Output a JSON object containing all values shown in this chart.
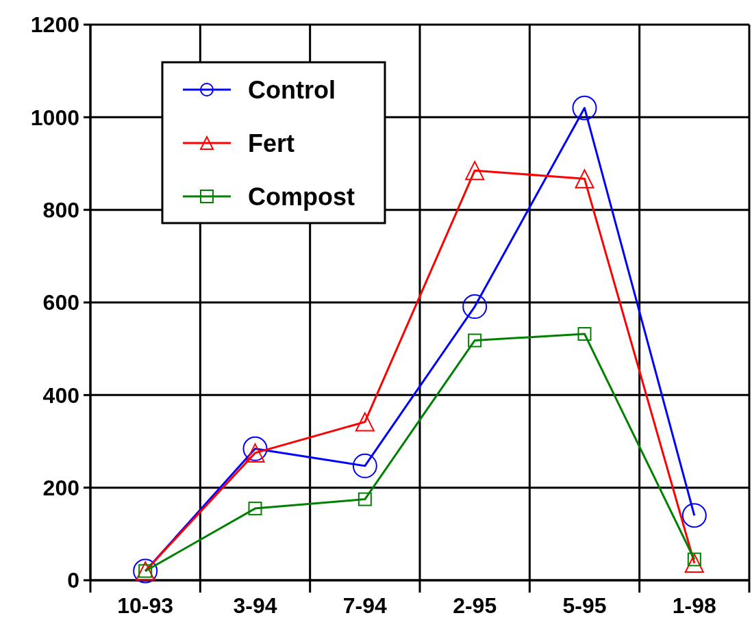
{
  "chart_data": {
    "type": "line",
    "categories": [
      "10-93",
      "3-94",
      "7-94",
      "2-95",
      "5-95",
      "1-98"
    ],
    "series": [
      {
        "name": "Control",
        "color": "#0000ff",
        "marker": "circle",
        "values": [
          20,
          284,
          247,
          591,
          1020,
          140
        ]
      },
      {
        "name": "Fert",
        "color": "#ff0000",
        "marker": "triangle",
        "values": [
          20,
          275,
          342,
          885,
          867,
          37
        ]
      },
      {
        "name": "Compost",
        "color": "#008000",
        "marker": "square",
        "values": [
          20,
          155,
          175,
          518,
          532,
          45
        ]
      }
    ],
    "ylim": [
      0,
      1200
    ],
    "yticks": [
      0,
      200,
      400,
      600,
      800,
      1000,
      1200
    ],
    "grid": true,
    "legend": "top left",
    "line_style": "solid"
  }
}
